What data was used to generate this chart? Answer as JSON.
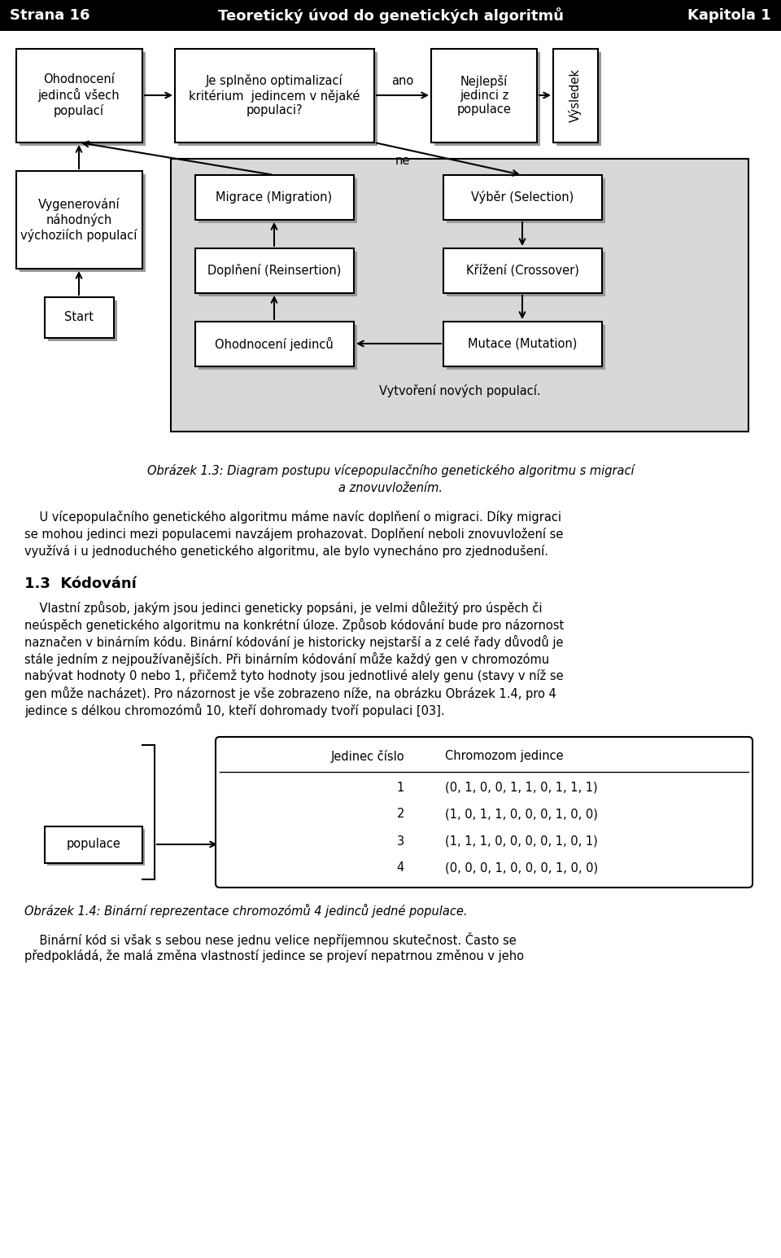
{
  "header_bg": "#000000",
  "header_text_color": "#ffffff",
  "header_left": "Strana 16",
  "header_center": "Teoretický úvod do genetických algoritmů",
  "header_right": "Kapitola 1",
  "header_fontsize": 13,
  "page_bg": "#ffffff",
  "caption_text": "Vytvoření nových populací.",
  "figure_label_line1": "Obrázek 1.3: Diagram postupu vícepopulacčního genetického algoritmu s migrací",
  "figure_label_line2": "a znovuvložením.",
  "body_paragraphs": [
    "    U vícepopulačního genetického algoritmu máme navíc doplňení o migraci. Díky migraci",
    "se mohou jedinci mezi populacemi navzájem prohazovat. Doplňení neboli znovuvložení se",
    "využívá i u jednoduchého genetického algoritmu, ale bylo vynecháno pro zjednodušení."
  ],
  "section_title": "1.3  Kódování",
  "section_body": [
    "    Vlastní způsob, jakým jsou jedinci geneticky popsáni, je velmi důležitý pro úspěch či",
    "neúspěch genetického algoritmu na konkrétní úloze. Způsob kódování bude pro názornost",
    "naznačen v binárním kódu. Binární kódování je historicky nejstarší a z celé řady důvodů je",
    "stále jedním z nejpoužívanějších. Při binárním kódování může každý gen v chromozómu",
    "nabývat hodnoty 0 nebo 1, přičemž tyto hodnoty jsou jednotlivé alely genu (stavy v níž se",
    "gen může nacházet). Pro názornost je vše zobrazeno níže, na obrázku Obrázek 1.4, pro 4",
    "jedince s délkou chromozómů 10, kteří dohromady tvoří populaci [03]."
  ],
  "table_header": [
    "Jedinec číslo",
    "Chromozom jedince"
  ],
  "table_rows": [
    [
      "1",
      "(0, 1, 0, 0, 1, 1, 0, 1, 1, 1)"
    ],
    [
      "2",
      "(1, 0, 1, 1, 0, 0, 0, 1, 0, 0)"
    ],
    [
      "3",
      "(1, 1, 1, 0, 0, 0, 0, 1, 0, 1)"
    ],
    [
      "4",
      "(0, 0, 0, 1, 0, 0, 0, 1, 0, 0)"
    ]
  ],
  "table_label_left": "populace",
  "figure2_label": "Obrázek 1.4: Binární reprezentace chromozómů 4 jedinců jedné populace.",
  "final_paragraphs": [
    "    Binární kód si však s sebou nese jednu velice nepříjemnou skutečnost. Často se",
    "předpokládá, že malá změna vlastností jedince se projeví nepatrnou změnou v jeho"
  ]
}
